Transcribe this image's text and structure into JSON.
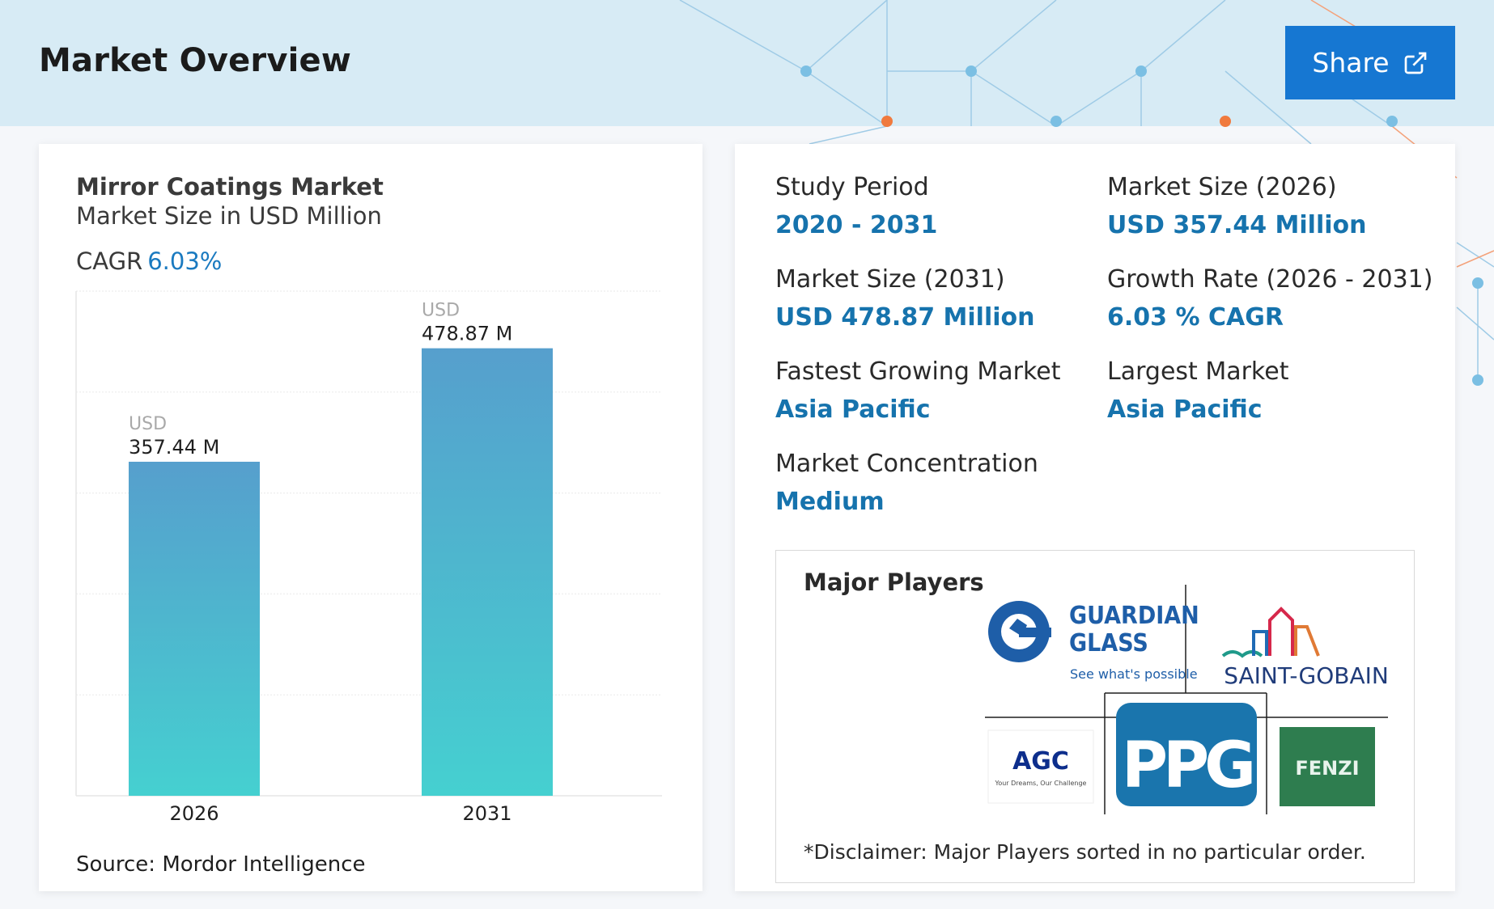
{
  "header": {
    "title": "Market Overview",
    "share_label": "Share"
  },
  "chart_card": {
    "title": "Mirror Coatings Market",
    "subtitle": "Market Size in USD Million",
    "cagr_label": "CAGR",
    "cagr_value": "6.03%",
    "source": "Source: Mordor Intelligence"
  },
  "chart_data": {
    "type": "bar",
    "title": "Mirror Coatings Market",
    "subtitle": "Market Size in USD Million",
    "categories": [
      "2026",
      "2031"
    ],
    "values": [
      357.44,
      478.87
    ],
    "value_labels": [
      "357.44 M",
      "478.87 M"
    ],
    "value_prefix": "USD",
    "ylim": [
      0,
      540
    ],
    "grid": true,
    "bar_gradient": [
      "#569fcd",
      "#45d0d0"
    ]
  },
  "stats": [
    {
      "label": "Study Period",
      "value": "2020 - 2031"
    },
    {
      "label": "Market Size (2026)",
      "value": "USD 357.44 Million"
    },
    {
      "label": "Market Size (2031)",
      "value": "USD 478.87 Million"
    },
    {
      "label": "Growth Rate (2026 - 2031)",
      "value": "6.03 % CAGR"
    },
    {
      "label": "Fastest Growing Market",
      "value": "Asia Pacific"
    },
    {
      "label": "Largest Market",
      "value": "Asia Pacific"
    },
    {
      "label": "Market Concentration",
      "value": "Medium"
    }
  ],
  "players": {
    "title": "Major Players",
    "logos": [
      {
        "name": "Guardian Glass",
        "line1": "GUARDIAN",
        "line2": "GLASS",
        "tagline": "See what's possible",
        "color": "#1e5ea8"
      },
      {
        "name": "Saint-Gobain",
        "text": "SAINT-GOBAIN",
        "color": "#203c7a"
      },
      {
        "name": "AGC",
        "text": "AGC",
        "tagline": "Your Dreams, Our Challenge",
        "color": "#0d2e8c"
      },
      {
        "name": "PPG",
        "text": "PPG",
        "color": "#1a75ad"
      },
      {
        "name": "Fenzi",
        "text": "FENZI",
        "color": "#2e7d4f"
      }
    ],
    "disclaimer": "*Disclaimer: Major Players sorted in no particular order."
  },
  "colors": {
    "accent": "#1673ad",
    "share_button": "#1677d2",
    "header_bg": "#d7ebf5"
  }
}
